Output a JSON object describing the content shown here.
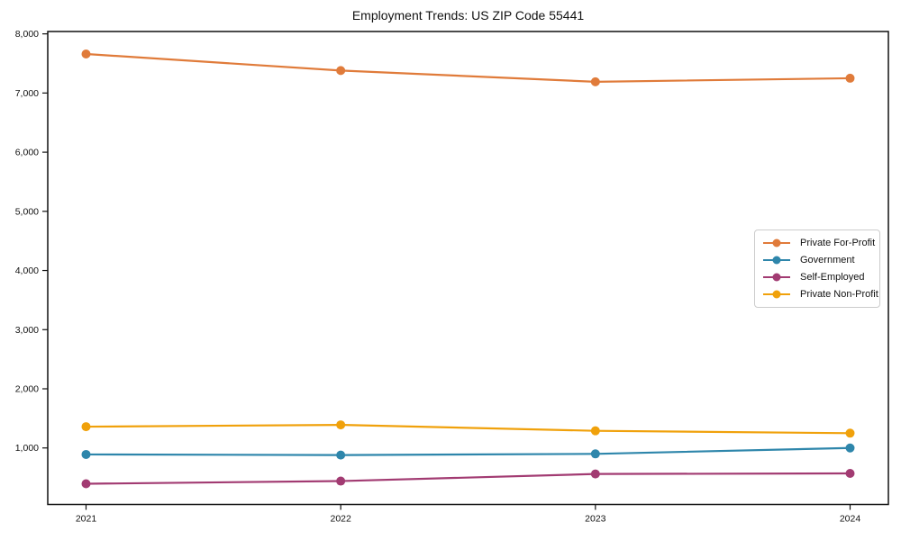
{
  "chart_data": {
    "type": "line",
    "title": "Employment Trends: US ZIP Code 55441",
    "categories": [
      "2021",
      "2022",
      "2023",
      "2024"
    ],
    "series": [
      {
        "name": "Private For-Profit",
        "color": "#e07b3a",
        "values": [
          7660,
          7380,
          7190,
          7250
        ]
      },
      {
        "name": "Government",
        "color": "#2e86ab",
        "values": [
          890,
          880,
          900,
          1000
        ]
      },
      {
        "name": "Self-Employed",
        "color": "#a23b72",
        "values": [
          395,
          440,
          560,
          570
        ]
      },
      {
        "name": "Private Non-Profit",
        "color": "#f0a10b",
        "values": [
          1360,
          1390,
          1290,
          1250
        ]
      }
    ],
    "xlabel": "",
    "ylabel": "",
    "ylim": [
      45,
      8040
    ],
    "yticks": [
      1000,
      2000,
      3000,
      4000,
      5000,
      6000,
      7000,
      8000
    ],
    "ytick_format": "comma",
    "grid": false,
    "legend_position": "right-middle",
    "marker": "circle",
    "frame": "full-box"
  }
}
